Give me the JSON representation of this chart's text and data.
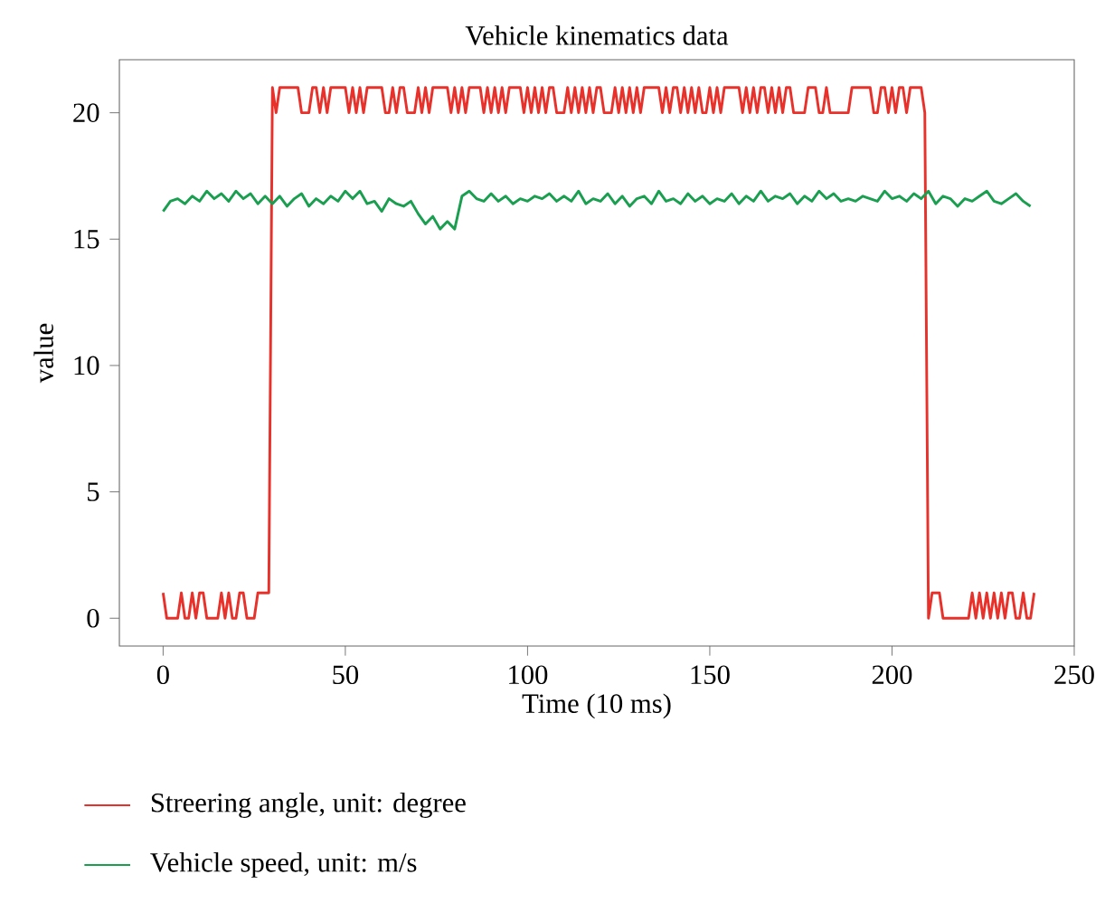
{
  "chart_data": {
    "type": "line",
    "title": "Vehicle kinematics data",
    "xlabel": "Time (10 ms)",
    "ylabel": "value",
    "xlim": [
      -12,
      250
    ],
    "ylim": [
      -1.1,
      22.1
    ],
    "xticks": [
      0,
      50,
      100,
      150,
      200,
      250
    ],
    "yticks": [
      0,
      5,
      10,
      15,
      20
    ],
    "legend": "bottom left",
    "grid": false,
    "marker": "none",
    "line_style": "solid",
    "series": [
      {
        "name": "Streering angle, unit: degree",
        "color": "#e8312a",
        "type": "step",
        "x": [
          0,
          1,
          2,
          3,
          4,
          5,
          6,
          7,
          8,
          9,
          10,
          11,
          12,
          13,
          14,
          15,
          16,
          17,
          18,
          19,
          20,
          21,
          22,
          23,
          24,
          25,
          26,
          27,
          28,
          29,
          30,
          31,
          32,
          33,
          34,
          35,
          36,
          37,
          38,
          39,
          40,
          41,
          42,
          43,
          44,
          45,
          46,
          47,
          48,
          49,
          50,
          51,
          52,
          53,
          54,
          55,
          56,
          57,
          58,
          59,
          60,
          61,
          62,
          63,
          64,
          65,
          66,
          67,
          68,
          69,
          70,
          71,
          72,
          73,
          74,
          75,
          76,
          77,
          78,
          79,
          80,
          81,
          82,
          83,
          84,
          85,
          86,
          87,
          88,
          89,
          90,
          91,
          92,
          93,
          94,
          95,
          96,
          97,
          98,
          99,
          100,
          101,
          102,
          103,
          104,
          105,
          106,
          107,
          108,
          109,
          110,
          111,
          112,
          113,
          114,
          115,
          116,
          117,
          118,
          119,
          120,
          121,
          122,
          123,
          124,
          125,
          126,
          127,
          128,
          129,
          130,
          131,
          132,
          133,
          134,
          135,
          136,
          137,
          138,
          139,
          140,
          141,
          142,
          143,
          144,
          145,
          146,
          147,
          148,
          149,
          150,
          151,
          152,
          153,
          154,
          155,
          156,
          157,
          158,
          159,
          160,
          161,
          162,
          163,
          164,
          165,
          166,
          167,
          168,
          169,
          170,
          171,
          172,
          173,
          174,
          175,
          176,
          177,
          178,
          179,
          180,
          181,
          182,
          183,
          184,
          185,
          186,
          187,
          188,
          189,
          190,
          191,
          192,
          193,
          194,
          195,
          196,
          197,
          198,
          199,
          200,
          201,
          202,
          203,
          204,
          205,
          206,
          207,
          208,
          209,
          210,
          211,
          212,
          213,
          214,
          215,
          216,
          217,
          218,
          219,
          220,
          221,
          222,
          223,
          224,
          225,
          226,
          227,
          228,
          229,
          230,
          231,
          232,
          233,
          234,
          235,
          236,
          237,
          238,
          239
        ],
        "values": [
          1,
          0,
          0,
          0,
          0,
          1,
          0,
          0,
          1,
          0,
          1,
          1,
          0,
          0,
          0,
          0,
          1,
          0,
          1,
          0,
          0,
          1,
          1,
          0,
          0,
          0,
          1,
          1,
          1,
          1,
          21,
          20,
          21,
          21,
          21,
          21,
          21,
          21,
          20,
          20,
          20,
          21,
          21,
          20,
          21,
          20,
          21,
          21,
          21,
          21,
          21,
          20,
          21,
          20,
          21,
          20,
          21,
          21,
          21,
          21,
          21,
          20,
          20,
          21,
          20,
          21,
          21,
          20,
          20,
          20,
          21,
          20,
          21,
          20,
          21,
          21,
          21,
          21,
          21,
          20,
          21,
          20,
          21,
          20,
          21,
          21,
          21,
          21,
          20,
          21,
          20,
          21,
          20,
          21,
          20,
          21,
          21,
          21,
          21,
          20,
          21,
          20,
          21,
          20,
          21,
          20,
          21,
          21,
          20,
          20,
          20,
          21,
          20,
          21,
          20,
          21,
          20,
          21,
          20,
          21,
          21,
          20,
          20,
          20,
          21,
          20,
          21,
          20,
          21,
          20,
          21,
          20,
          21,
          21,
          21,
          21,
          21,
          20,
          21,
          20,
          21,
          21,
          20,
          21,
          20,
          21,
          20,
          21,
          20,
          20,
          21,
          20,
          21,
          20,
          21,
          21,
          21,
          21,
          21,
          20,
          21,
          20,
          21,
          20,
          21,
          21,
          20,
          21,
          20,
          21,
          20,
          21,
          21,
          20,
          20,
          20,
          20,
          21,
          21,
          21,
          20,
          20,
          21,
          20,
          20,
          20,
          20,
          20,
          20,
          21,
          21,
          21,
          21,
          21,
          21,
          20,
          20,
          21,
          21,
          20,
          21,
          20,
          21,
          21,
          20,
          21,
          21,
          21,
          21,
          20,
          0,
          1,
          1,
          1,
          0,
          0,
          0,
          0,
          0,
          0,
          0,
          0,
          1,
          0,
          1,
          0,
          1,
          0,
          1,
          0,
          1,
          0,
          1,
          1,
          0,
          0,
          1,
          0,
          0,
          1
        ]
      },
      {
        "name": "Vehicle speed, unit: m/s",
        "color": "#1a9e50",
        "x": [
          0,
          2,
          4,
          6,
          8,
          10,
          12,
          14,
          16,
          18,
          20,
          22,
          24,
          26,
          28,
          30,
          32,
          34,
          36,
          38,
          40,
          42,
          44,
          46,
          48,
          50,
          52,
          54,
          56,
          58,
          60,
          62,
          64,
          66,
          68,
          70,
          72,
          74,
          76,
          78,
          80,
          82,
          84,
          86,
          88,
          90,
          92,
          94,
          96,
          98,
          100,
          102,
          104,
          106,
          108,
          110,
          112,
          114,
          116,
          118,
          120,
          122,
          124,
          126,
          128,
          130,
          132,
          134,
          136,
          138,
          140,
          142,
          144,
          146,
          148,
          150,
          152,
          154,
          156,
          158,
          160,
          162,
          164,
          166,
          168,
          170,
          172,
          174,
          176,
          178,
          180,
          182,
          184,
          186,
          188,
          190,
          192,
          194,
          196,
          198,
          200,
          202,
          204,
          206,
          208,
          210,
          212,
          214,
          216,
          218,
          220,
          222,
          224,
          226,
          228,
          230,
          232,
          234,
          236,
          238
        ],
        "values": [
          16.1,
          16.5,
          16.6,
          16.4,
          16.7,
          16.5,
          16.9,
          16.6,
          16.8,
          16.5,
          16.9,
          16.6,
          16.8,
          16.4,
          16.7,
          16.4,
          16.7,
          16.3,
          16.6,
          16.8,
          16.3,
          16.6,
          16.4,
          16.7,
          16.5,
          16.9,
          16.6,
          16.9,
          16.4,
          16.5,
          16.1,
          16.6,
          16.4,
          16.3,
          16.5,
          16.0,
          15.6,
          15.9,
          15.4,
          15.7,
          15.4,
          16.7,
          16.9,
          16.6,
          16.5,
          16.8,
          16.5,
          16.7,
          16.4,
          16.6,
          16.5,
          16.7,
          16.6,
          16.8,
          16.5,
          16.7,
          16.5,
          16.9,
          16.4,
          16.6,
          16.5,
          16.8,
          16.4,
          16.7,
          16.3,
          16.6,
          16.7,
          16.4,
          16.9,
          16.5,
          16.6,
          16.4,
          16.8,
          16.5,
          16.7,
          16.4,
          16.6,
          16.5,
          16.8,
          16.4,
          16.7,
          16.5,
          16.9,
          16.5,
          16.7,
          16.6,
          16.8,
          16.4,
          16.7,
          16.5,
          16.9,
          16.6,
          16.8,
          16.5,
          16.6,
          16.5,
          16.7,
          16.6,
          16.5,
          16.9,
          16.6,
          16.7,
          16.5,
          16.8,
          16.6,
          16.9,
          16.4,
          16.7,
          16.6,
          16.3,
          16.6,
          16.5,
          16.7,
          16.9,
          16.5,
          16.4,
          16.6,
          16.8,
          16.5,
          16.3
        ]
      }
    ]
  }
}
